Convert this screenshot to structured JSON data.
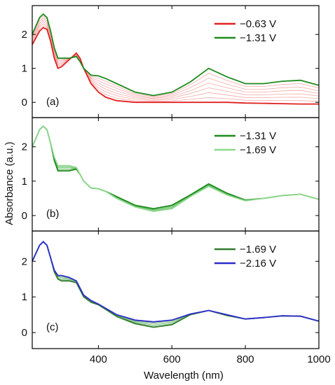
{
  "chart_data": {
    "type": "line",
    "xlabel": "Wavelength (nm)",
    "ylabel": "Absorbance (a.u.)",
    "xlim": [
      220,
      1000
    ],
    "x_ticks": [
      400,
      600,
      800,
      1000
    ],
    "y_ticks": [
      0,
      1,
      2
    ],
    "grid": false,
    "panels": [
      {
        "label": "(a)",
        "ylim": [
          -0.45,
          2.85
        ],
        "legend_position": "top-right",
        "intermediate_color": "#f28c8c",
        "intermediate_count": 6,
        "series": [
          {
            "name": "−0.63 V",
            "color": "#e02020",
            "x": [
              220,
              240,
              250,
              260,
              270,
              280,
              290,
              300,
              320,
              340,
              350,
              360,
              380,
              400,
              420,
              450,
              500,
              550,
              600,
              650,
              700,
              750,
              800,
              850,
              900,
              950,
              1000
            ],
            "values": [
              1.7,
              2.1,
              2.2,
              2.15,
              1.8,
              1.3,
              1.0,
              1.05,
              1.25,
              1.45,
              1.3,
              1.0,
              0.55,
              0.3,
              0.15,
              0.05,
              0.0,
              0.0,
              0.0,
              0.0,
              0.0,
              0.0,
              -0.02,
              -0.03,
              -0.04,
              -0.05,
              -0.05
            ]
          },
          {
            "name": "−1.31 V",
            "color": "#1e8a1e",
            "x": [
              220,
              240,
              250,
              260,
              270,
              280,
              290,
              300,
              320,
              340,
              350,
              360,
              380,
              400,
              420,
              450,
              500,
              550,
              600,
              650,
              700,
              750,
              800,
              850,
              900,
              950,
              1000
            ],
            "values": [
              2.0,
              2.5,
              2.6,
              2.5,
              2.1,
              1.6,
              1.3,
              1.3,
              1.3,
              1.35,
              1.2,
              1.0,
              0.8,
              0.78,
              0.7,
              0.55,
              0.3,
              0.2,
              0.3,
              0.6,
              1.0,
              0.75,
              0.55,
              0.55,
              0.62,
              0.65,
              0.5
            ]
          }
        ]
      },
      {
        "label": "(b)",
        "ylim": [
          -0.45,
          2.85
        ],
        "legend_position": "top-right",
        "intermediate_color": "#46b046",
        "intermediate_count": 4,
        "series": [
          {
            "name": "−1.31 V",
            "color": "#1e8a1e",
            "x": [
              220,
              240,
              250,
              260,
              270,
              280,
              290,
              300,
              320,
              340,
              350,
              360,
              380,
              400,
              420,
              450,
              500,
              550,
              600,
              650,
              700,
              750,
              800,
              850,
              900,
              950,
              1000
            ],
            "values": [
              2.0,
              2.5,
              2.6,
              2.5,
              2.1,
              1.6,
              1.3,
              1.3,
              1.3,
              1.35,
              1.2,
              1.0,
              0.8,
              0.78,
              0.7,
              0.55,
              0.3,
              0.2,
              0.3,
              0.6,
              0.92,
              0.65,
              0.45,
              0.5,
              0.58,
              0.62,
              0.47
            ]
          },
          {
            "name": "−1.69 V",
            "color": "#8ed88e",
            "x": [
              220,
              240,
              250,
              260,
              270,
              280,
              290,
              300,
              320,
              340,
              350,
              360,
              380,
              400,
              420,
              450,
              500,
              550,
              600,
              650,
              700,
              750,
              800,
              850,
              900,
              950,
              1000
            ],
            "values": [
              2.0,
              2.5,
              2.6,
              2.5,
              2.1,
              1.7,
              1.45,
              1.45,
              1.45,
              1.4,
              1.2,
              1.0,
              0.8,
              0.78,
              0.7,
              0.5,
              0.25,
              0.12,
              0.2,
              0.55,
              0.85,
              0.6,
              0.43,
              0.5,
              0.58,
              0.62,
              0.47
            ]
          }
        ]
      },
      {
        "label": "(c)",
        "ylim": [
          -0.45,
          2.85
        ],
        "legend_position": "top-right",
        "intermediate_color": "#58a858",
        "intermediate_count": 4,
        "series": [
          {
            "name": "−1.69 V",
            "color": "#2f7d2f",
            "x": [
              220,
              240,
              250,
              260,
              270,
              280,
              290,
              300,
              320,
              340,
              350,
              360,
              380,
              400,
              420,
              450,
              500,
              550,
              600,
              650,
              700,
              750,
              800,
              850,
              900,
              950,
              1000
            ],
            "values": [
              2.0,
              2.45,
              2.55,
              2.45,
              2.1,
              1.7,
              1.5,
              1.45,
              1.45,
              1.4,
              1.2,
              1.0,
              0.85,
              0.78,
              0.65,
              0.45,
              0.25,
              0.15,
              0.22,
              0.5,
              0.62,
              0.48,
              0.38,
              0.42,
              0.47,
              0.46,
              0.32
            ]
          },
          {
            "name": "−2.16 V",
            "color": "#2a2acc",
            "x": [
              220,
              240,
              250,
              260,
              270,
              280,
              290,
              300,
              320,
              340,
              350,
              360,
              380,
              400,
              420,
              450,
              500,
              550,
              600,
              650,
              700,
              750,
              800,
              850,
              900,
              950,
              1000
            ],
            "values": [
              2.0,
              2.45,
              2.55,
              2.45,
              2.1,
              1.75,
              1.6,
              1.6,
              1.55,
              1.45,
              1.25,
              1.05,
              0.9,
              0.8,
              0.68,
              0.5,
              0.35,
              0.3,
              0.35,
              0.52,
              0.62,
              0.5,
              0.38,
              0.42,
              0.47,
              0.46,
              0.32
            ]
          }
        ]
      }
    ]
  }
}
